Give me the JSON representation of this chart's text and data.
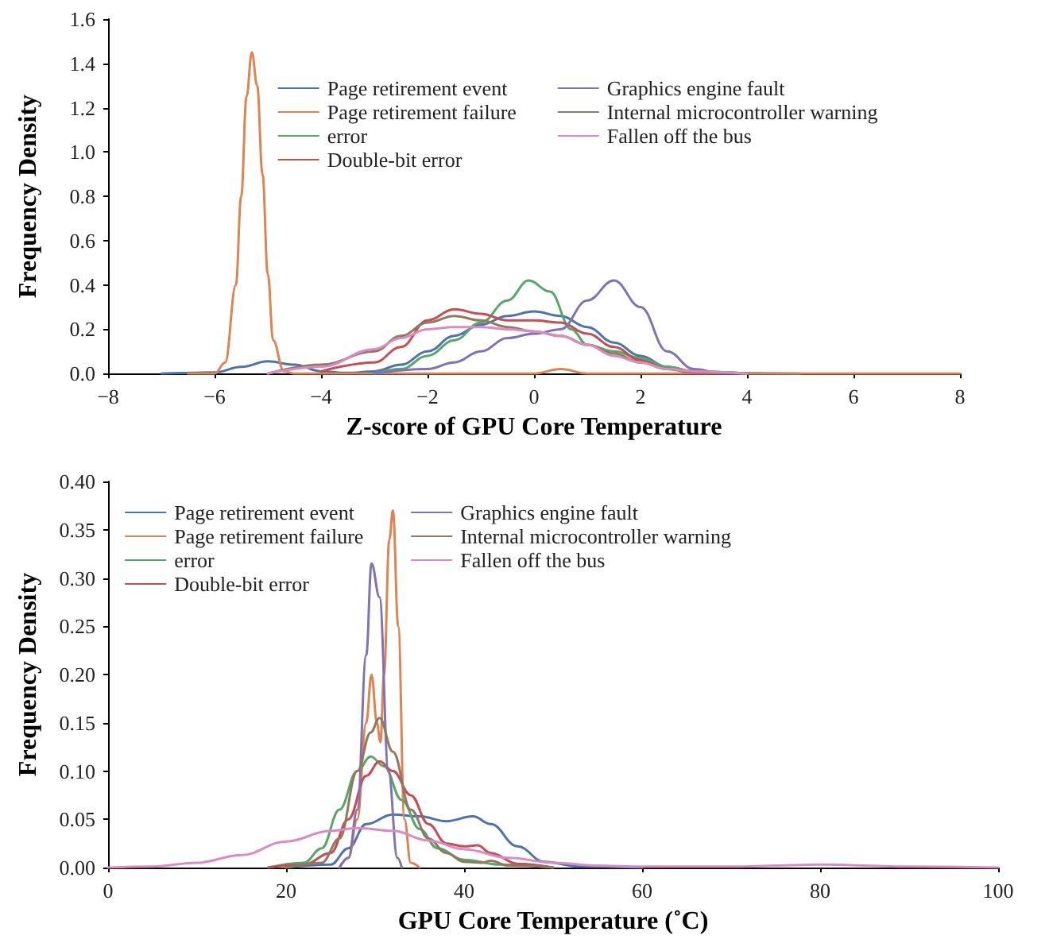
{
  "chart_data": [
    {
      "type": "line",
      "xlabel": "Z-score of GPU Core Temperature",
      "ylabel": "Frequency Density",
      "legend": "top",
      "grid": false,
      "marker": "none",
      "line_style": "solid",
      "xlim": [
        -8,
        8
      ],
      "ylim": [
        0,
        1.6
      ],
      "xticks": [
        {
          "value": -8,
          "label": "−8"
        },
        {
          "value": -6,
          "label": "−6"
        },
        {
          "value": -4,
          "label": "−4"
        },
        {
          "value": -2,
          "label": "−2"
        },
        0,
        2,
        4,
        6,
        8
      ],
      "yticks": [
        {
          "value": 0,
          "label": "0.0"
        },
        {
          "value": 0.2,
          "label": "0.2"
        },
        {
          "value": 0.4,
          "label": "0.4"
        },
        {
          "value": 0.6,
          "label": "0.6"
        },
        {
          "value": 0.8,
          "label": "0.8"
        },
        {
          "value": 1,
          "label": "1.0"
        },
        {
          "value": 1.2,
          "label": "1.2"
        },
        {
          "value": 1.4,
          "label": "1.4"
        },
        {
          "value": 1.6,
          "label": "1.6"
        }
      ],
      "series": [
        {
          "name": "Page retirement event",
          "color": "#4c72b0",
          "x": [
            -7,
            -6,
            -5.5,
            -5,
            -4.5,
            -4,
            -3.5,
            -3,
            -2.5,
            -2,
            -1.5,
            -1,
            -0.5,
            0,
            0.5,
            1,
            1.5,
            2,
            2.5,
            3,
            4,
            5
          ],
          "values": [
            0,
            0.005,
            0.03,
            0.055,
            0.04,
            0.01,
            0.003,
            0.01,
            0.04,
            0.1,
            0.17,
            0.22,
            0.26,
            0.28,
            0.26,
            0.21,
            0.14,
            0.08,
            0.03,
            0.01,
            0.002,
            0
          ]
        },
        {
          "name": "Page retirement failure",
          "color": "#dd8452",
          "x": [
            -6.5,
            -6,
            -5.8,
            -5.6,
            -5.5,
            -5.4,
            -5.3,
            -5.2,
            -5.1,
            -5,
            -4.9,
            -4.7,
            -4.5,
            -3,
            0,
            0.5,
            1,
            3,
            8
          ],
          "values": [
            0,
            0,
            0.05,
            0.4,
            0.8,
            1.25,
            1.45,
            1.3,
            0.9,
            0.45,
            0.15,
            0.01,
            0,
            0,
            0,
            0.02,
            0,
            0,
            0
          ]
        },
        {
          "name": "error",
          "color": "#55a868",
          "x": [
            -3,
            -2.5,
            -2,
            -1.5,
            -1,
            -0.5,
            -0.1,
            0.3,
            0.7,
            1,
            1.5,
            2,
            2.5,
            3,
            4
          ],
          "values": [
            0,
            0.02,
            0.08,
            0.15,
            0.23,
            0.33,
            0.42,
            0.37,
            0.2,
            0.13,
            0.1,
            0.07,
            0.03,
            0.01,
            0
          ]
        },
        {
          "name": "Double-bit error",
          "color": "#c44e52",
          "x": [
            -4,
            -3,
            -2.5,
            -2,
            -1.5,
            -1,
            -0.5,
            0,
            0.5,
            1,
            1.5,
            2,
            2.5,
            3,
            4
          ],
          "values": [
            0.01,
            0.05,
            0.12,
            0.24,
            0.29,
            0.27,
            0.24,
            0.24,
            0.23,
            0.18,
            0.12,
            0.06,
            0.02,
            0.005,
            0
          ]
        },
        {
          "name": "Graphics engine fault",
          "color": "#8172b3",
          "x": [
            -3,
            -2,
            -1.5,
            -1,
            -0.5,
            0,
            0.5,
            1,
            1.5,
            2,
            2.5,
            3,
            3.5,
            4
          ],
          "values": [
            0,
            0.02,
            0.05,
            0.1,
            0.16,
            0.18,
            0.2,
            0.33,
            0.42,
            0.3,
            0.1,
            0.02,
            0.003,
            0
          ]
        },
        {
          "name": "Internal microcontroller warning",
          "color": "#937860",
          "x": [
            -5,
            -4,
            -3,
            -2.5,
            -2,
            -1.5,
            -1,
            -0.5,
            0,
            0.5,
            1,
            1.5,
            2,
            2.5,
            3,
            4
          ],
          "values": [
            0,
            0.04,
            0.1,
            0.17,
            0.23,
            0.26,
            0.24,
            0.21,
            0.19,
            0.17,
            0.13,
            0.09,
            0.05,
            0.02,
            0.01,
            0
          ]
        },
        {
          "name": "Fallen off the bus",
          "color": "#da8bc3",
          "x": [
            -5,
            -4,
            -3,
            -2.5,
            -2,
            -1.5,
            -1,
            -0.5,
            0,
            0.5,
            1,
            1.5,
            2,
            2.5,
            3,
            4
          ],
          "values": [
            0,
            0.03,
            0.11,
            0.16,
            0.2,
            0.21,
            0.21,
            0.2,
            0.19,
            0.17,
            0.13,
            0.08,
            0.05,
            0.02,
            0.01,
            0
          ]
        }
      ]
    },
    {
      "type": "line",
      "xlabel": "GPU Core Temperature (˚C)",
      "ylabel": "Frequency Density",
      "legend": "top left",
      "grid": false,
      "marker": "none",
      "line_style": "solid",
      "xlim": [
        0,
        100
      ],
      "ylim": [
        0,
        0.4
      ],
      "xticks": [
        0,
        20,
        40,
        60,
        80,
        100
      ],
      "yticks": [
        {
          "value": 0,
          "label": "0.00"
        },
        {
          "value": 0.05,
          "label": "0.05"
        },
        {
          "value": 0.1,
          "label": "0.10"
        },
        {
          "value": 0.15,
          "label": "0.15"
        },
        {
          "value": 0.2,
          "label": "0.20"
        },
        {
          "value": 0.25,
          "label": "0.25"
        },
        {
          "value": 0.3,
          "label": "0.30"
        },
        {
          "value": 0.35,
          "label": "0.35"
        },
        {
          "value": 0.4,
          "label": "0.40"
        }
      ],
      "series": [
        {
          "name": "Page retirement event",
          "color": "#4c72b0",
          "x": [
            20,
            25,
            27,
            29,
            32,
            35,
            38,
            41,
            43,
            46,
            49,
            53,
            60
          ],
          "values": [
            0,
            0.003,
            0.02,
            0.045,
            0.055,
            0.053,
            0.048,
            0.053,
            0.045,
            0.022,
            0.006,
            0.001,
            0
          ]
        },
        {
          "name": "Page retirement failure",
          "color": "#dd8452",
          "x": [
            26,
            27,
            28,
            29,
            29.6,
            30.2,
            30.6,
            31,
            31.6,
            32,
            32.6,
            33.3,
            34,
            35
          ],
          "values": [
            0,
            0.01,
            0.05,
            0.15,
            0.2,
            0.15,
            0.13,
            0.2,
            0.34,
            0.37,
            0.25,
            0.05,
            0.005,
            0
          ]
        },
        {
          "name": "error",
          "color": "#55a868",
          "x": [
            18,
            22,
            24,
            26,
            28,
            29.5,
            31,
            33,
            35,
            37,
            40,
            44,
            50
          ],
          "values": [
            0,
            0.005,
            0.02,
            0.06,
            0.1,
            0.115,
            0.105,
            0.07,
            0.04,
            0.02,
            0.008,
            0.003,
            0
          ]
        },
        {
          "name": "Double-bit error",
          "color": "#c44e52",
          "x": [
            18,
            22,
            25,
            27,
            29,
            30.5,
            32,
            34,
            36,
            38,
            40,
            41.5,
            43,
            46,
            50
          ],
          "values": [
            0,
            0.003,
            0.015,
            0.05,
            0.095,
            0.11,
            0.1,
            0.075,
            0.045,
            0.025,
            0.022,
            0.023,
            0.015,
            0.004,
            0
          ]
        },
        {
          "name": "Graphics engine fault",
          "color": "#8172b3",
          "x": [
            26,
            27,
            28,
            29,
            29.6,
            30.5,
            31.5,
            32.5,
            33
          ],
          "values": [
            0,
            0.01,
            0.06,
            0.22,
            0.315,
            0.28,
            0.1,
            0.01,
            0
          ]
        },
        {
          "name": "Internal microcontroller warning",
          "color": "#937860",
          "x": [
            20,
            24,
            26,
            28,
            29.5,
            30.5,
            32,
            34,
            36,
            38,
            40,
            42,
            43,
            45,
            50
          ],
          "values": [
            0,
            0.005,
            0.03,
            0.1,
            0.14,
            0.155,
            0.12,
            0.06,
            0.03,
            0.015,
            0.006,
            0.005,
            0.007,
            0.002,
            0
          ]
        },
        {
          "name": "Fallen off the bus",
          "color": "#da8bc3",
          "x": [
            0,
            5,
            10,
            15,
            20,
            25,
            28,
            32,
            36,
            40,
            45,
            50,
            55,
            60,
            70,
            80,
            90,
            100
          ],
          "values": [
            0,
            0.001,
            0.005,
            0.013,
            0.027,
            0.038,
            0.041,
            0.038,
            0.028,
            0.019,
            0.01,
            0.005,
            0.002,
            0.001,
            0.001,
            0.003,
            0.001,
            0
          ]
        }
      ]
    }
  ]
}
